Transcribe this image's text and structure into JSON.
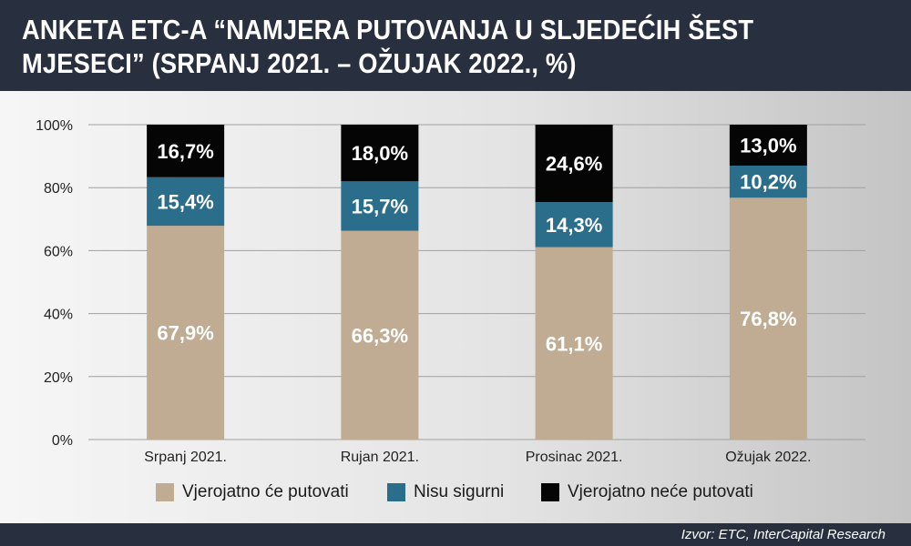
{
  "header": {
    "title": "ANKETA ETC-A “NAMJERA PUTOVANJA U SLJEDEĆIH ŠEST MJESECI” (SRPANJ 2021. – OŽUJAK 2022., %)"
  },
  "footer": {
    "source": "Izvor: ETC, InterCapital Research"
  },
  "colors": {
    "header_bg": "#283040",
    "grid": "#a0a0a0"
  },
  "chart_data": {
    "type": "bar",
    "stacked": true,
    "categories": [
      "Srpanj 2021.",
      "Rujan 2021.",
      "Prosinac 2021.",
      "Ožujak 2022."
    ],
    "series": [
      {
        "name": "Vjerojatno će putovati",
        "values": [
          67.9,
          66.3,
          61.1,
          76.8
        ],
        "labels": [
          "67,9%",
          "66,3%",
          "61,1%",
          "76,8%"
        ],
        "color": "#bfac93",
        "label_color": "#ffffff"
      },
      {
        "name": "Nisu sigurni",
        "values": [
          15.4,
          15.7,
          14.3,
          10.2
        ],
        "labels": [
          "15,4%",
          "15,7%",
          "14,3%",
          "10,2%"
        ],
        "color": "#2a6e8c",
        "label_color": "#ffffff"
      },
      {
        "name": "Vjerojatno neće putovati",
        "values": [
          16.7,
          18.0,
          24.6,
          13.0
        ],
        "labels": [
          "16,7%",
          "18,0%",
          "24,6%",
          "13,0%"
        ],
        "color": "#050505",
        "label_color": "#ffffff"
      }
    ],
    "y_ticks": [
      0,
      20,
      40,
      60,
      80,
      100
    ],
    "y_tick_labels": [
      "0%",
      "20%",
      "40%",
      "60%",
      "80%",
      "100%"
    ],
    "ylim": [
      0,
      100
    ],
    "grid": true,
    "legend_position": "bottom"
  }
}
